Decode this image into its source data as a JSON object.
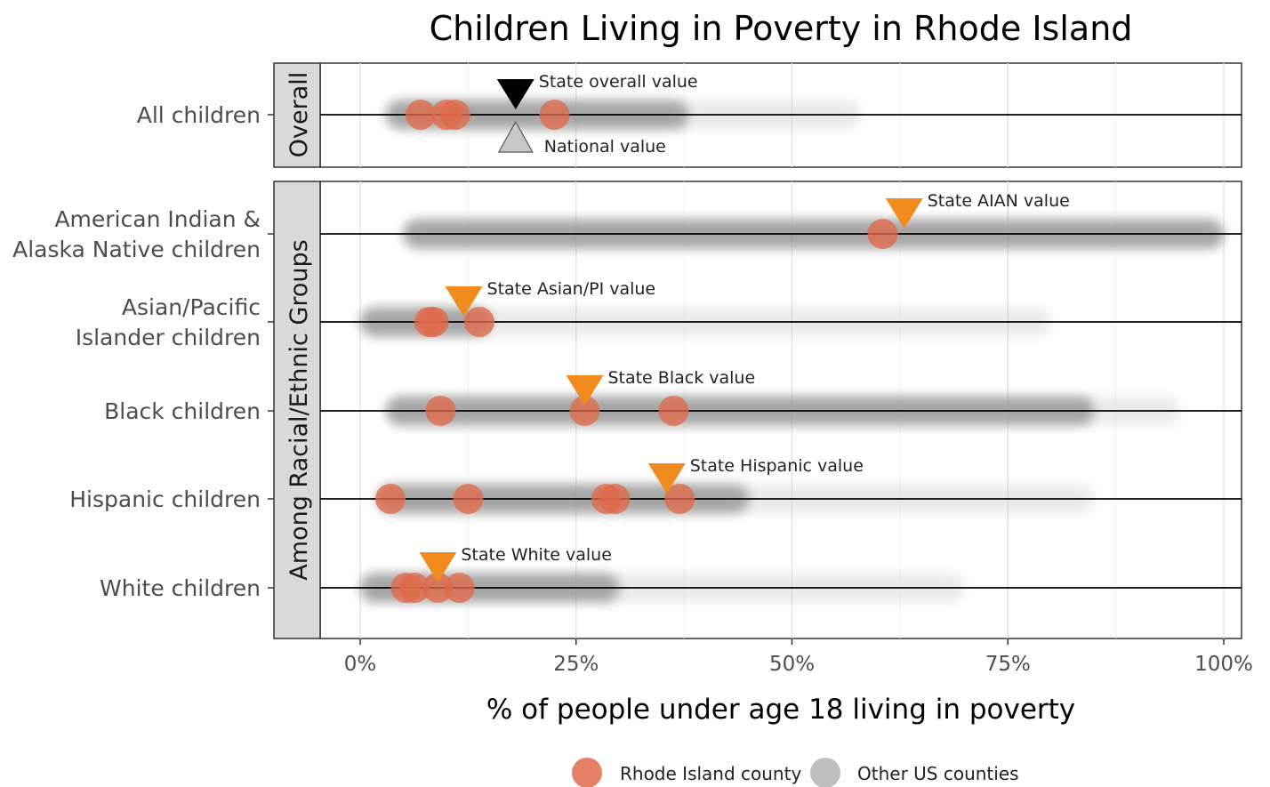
{
  "chart_data": {
    "type": "scatter",
    "title": "Children Living in Poverty in Rhode Island",
    "xlabel": "% of people under age 18 living in poverty",
    "ylabel": "",
    "xlim": [
      -10,
      102
    ],
    "x_ticks": [
      0,
      25,
      50,
      75,
      100
    ],
    "x_tick_labels": [
      "0%",
      "25%",
      "50%",
      "75%",
      "100%"
    ],
    "grid": true,
    "legend": {
      "position": "bottom",
      "entries": [
        {
          "label": "Rhode Island county",
          "color": "#e0694a"
        },
        {
          "label": "Other US counties",
          "color": "#b3b3b3"
        }
      ]
    },
    "panels": [
      {
        "strip_label": "Overall",
        "rows": [
          {
            "label_lines": [
              "All children"
            ],
            "ri_counties": [
              7,
              10,
              11,
              22.5
            ],
            "us_band": {
              "core": [
                3,
                38
              ],
              "tail_to": 58
            },
            "markers": [
              {
                "type": "state",
                "value": 18,
                "label": "State overall value",
                "color": "#000000"
              },
              {
                "type": "national",
                "value": 18,
                "label": "National value",
                "color": "#c8c8c8"
              }
            ]
          }
        ]
      },
      {
        "strip_label": "Among Racial/Ethnic Groups",
        "rows": [
          {
            "label_lines": [
              "American Indian &",
              "Alaska Native children"
            ],
            "ri_counties": [
              60.5
            ],
            "us_band": {
              "core": [
                5,
                100
              ],
              "tail_to": 100
            },
            "markers": [
              {
                "type": "state",
                "value": 63,
                "label": "State AIAN value",
                "color": "#f08c1e"
              }
            ]
          },
          {
            "label_lines": [
              "Asian/Pacific",
              "Islander children"
            ],
            "ri_counties": [
              8,
              8.5,
              13.8
            ],
            "us_band": {
              "core": [
                0,
                15
              ],
              "tail_to": 80
            },
            "markers": [
              {
                "type": "state",
                "value": 12,
                "label": "State Asian/PI value",
                "color": "#f08c1e"
              }
            ]
          },
          {
            "label_lines": [
              "Black children"
            ],
            "ri_counties": [
              9.3,
              26,
              36.3
            ],
            "us_band": {
              "core": [
                3,
                85
              ],
              "tail_to": 95
            },
            "markers": [
              {
                "type": "state",
                "value": 26,
                "label": "State Black value",
                "color": "#f08c1e"
              }
            ]
          },
          {
            "label_lines": [
              "Hispanic children"
            ],
            "ri_counties": [
              3.5,
              12.5,
              28.5,
              29.5,
              37
            ],
            "us_band": {
              "core": [
                2,
                45
              ],
              "tail_to": 85
            },
            "markers": [
              {
                "type": "state",
                "value": 35.5,
                "label": "State Hispanic value",
                "color": "#f08c1e"
              }
            ]
          },
          {
            "label_lines": [
              "White children"
            ],
            "ri_counties": [
              5.3,
              6.3,
              9,
              11.5
            ],
            "us_band": {
              "core": [
                0,
                30
              ],
              "tail_to": 70
            },
            "markers": [
              {
                "type": "state",
                "value": 9,
                "label": "State White value",
                "color": "#f08c1e"
              }
            ]
          }
        ]
      }
    ]
  }
}
